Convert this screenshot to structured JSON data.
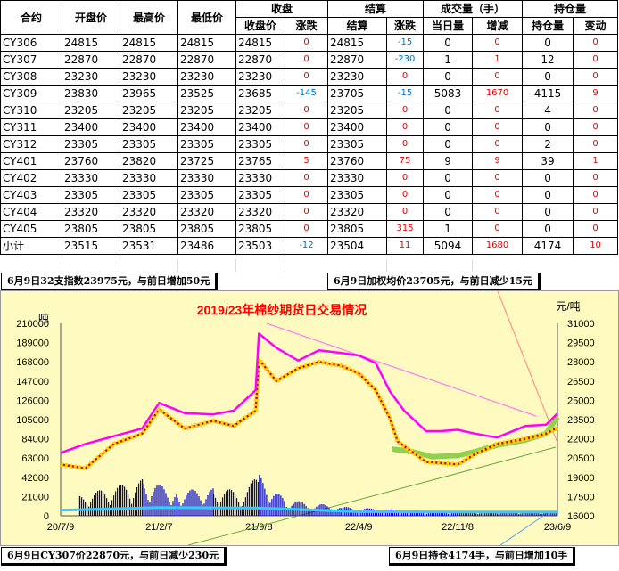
{
  "table": {
    "headers_top": [
      "合约",
      "开盘价",
      "最高价",
      "最低价",
      "收盘",
      "结算",
      "成交量（手）",
      "持仓量"
    ],
    "headers_sub": [
      "收盘价",
      "涨跌",
      "结算",
      "涨跌",
      "当日量",
      "增减",
      "持仓量",
      "变动"
    ],
    "rows": [
      [
        "CY306",
        "24815",
        "24815",
        "24815",
        "24815",
        "0",
        "24815",
        "-15",
        "0",
        "0",
        "0",
        "0"
      ],
      [
        "CY307",
        "22870",
        "22870",
        "22870",
        "22870",
        "0",
        "22870",
        "-230",
        "1",
        "1",
        "12",
        "0"
      ],
      [
        "CY308",
        "23230",
        "23230",
        "23230",
        "23230",
        "0",
        "23230",
        "0",
        "0",
        "0",
        "0",
        "0"
      ],
      [
        "CY309",
        "23830",
        "23965",
        "23525",
        "23685",
        "-145",
        "23705",
        "-15",
        "5083",
        "1670",
        "4115",
        "9"
      ],
      [
        "CY310",
        "23205",
        "23205",
        "23205",
        "23205",
        "0",
        "23205",
        "0",
        "0",
        "0",
        "4",
        "0"
      ],
      [
        "CY311",
        "23400",
        "23400",
        "23400",
        "23400",
        "0",
        "23400",
        "0",
        "0",
        "0",
        "0",
        "0"
      ],
      [
        "CY312",
        "23305",
        "23305",
        "23305",
        "23305",
        "0",
        "23305",
        "0",
        "0",
        "0",
        "2",
        "0"
      ],
      [
        "CY401",
        "23760",
        "23820",
        "23725",
        "23765",
        "5",
        "23760",
        "75",
        "9",
        "9",
        "39",
        "1"
      ],
      [
        "CY402",
        "23330",
        "23330",
        "23330",
        "23330",
        "0",
        "23330",
        "0",
        "0",
        "0",
        "0",
        "0"
      ],
      [
        "CY403",
        "23305",
        "23305",
        "23305",
        "23305",
        "0",
        "23305",
        "0",
        "0",
        "0",
        "0",
        "0"
      ],
      [
        "CY404",
        "23320",
        "23320",
        "23320",
        "23320",
        "0",
        "23320",
        "0",
        "0",
        "0",
        "0",
        "0"
      ],
      [
        "CY405",
        "23805",
        "23805",
        "23805",
        "23805",
        "0",
        "23805",
        "315",
        "1",
        "0",
        "0",
        "0"
      ],
      [
        "小计",
        "23515",
        "23531",
        "23486",
        "23503",
        "-12",
        "23504",
        "11",
        "5094",
        "1680",
        "4174",
        "10"
      ]
    ]
  },
  "notes": {
    "index": "6月9日32支指数23975元，与前日增加50元",
    "weighted": "6月9日加权均价23705元，与前日减少15元",
    "cy307": "6月9日CY307价22870元，与前日减少230元",
    "oi": "6月9日持仓4174手，与前日增加10手"
  },
  "colors": {
    "up": "#e60000",
    "down": "#0070c0",
    "plot_bg": "#fffbc0",
    "magenta": "#ff00ff",
    "gold": "#ffd200",
    "green": "#92d050",
    "blue": "#0000cc",
    "cyan": "#33ccff",
    "title": "#ff0000"
  },
  "chart_data": {
    "type": "line",
    "title": "2019/23年棉纱期货日交易情况",
    "y_left_label": "吨",
    "y_right_label": "元/吨",
    "x_ticks": [
      "20/7/9",
      "21/2/7",
      "21/9/8",
      "22/4/9",
      "22/11/8",
      "23/6/9"
    ],
    "y_left_ticks": [
      "0",
      "21000",
      "42000",
      "63000",
      "84000",
      "105000",
      "126000",
      "147000",
      "168000",
      "189000",
      "210000"
    ],
    "y_right_ticks": [
      "16000",
      "17500",
      "19000",
      "20500",
      "22000",
      "23500",
      "25000",
      "26500",
      "28000",
      "29500",
      "31000"
    ],
    "y_left_range": [
      0,
      210000
    ],
    "y_right_range": [
      16000,
      31000
    ],
    "series": [
      {
        "name": "magenta-index",
        "axis": "right",
        "x": [
          "20/7/9",
          "20/9/1",
          "20/11/1",
          "21/1/1",
          "21/2/7",
          "21/4/1",
          "21/6/1",
          "21/7/15",
          "21/9/1",
          "21/9/8",
          "21/10/15",
          "21/12/1",
          "22/1/15",
          "22/3/1",
          "22/4/9",
          "22/5/15",
          "22/6/15",
          "22/7/15",
          "22/9/1",
          "22/10/1",
          "22/11/8",
          "22/12/15",
          "23/2/1",
          "23/4/1",
          "23/5/15",
          "23/6/9"
        ],
        "y": [
          20900,
          21600,
          22200,
          22800,
          24800,
          24000,
          23900,
          24200,
          25800,
          30200,
          29100,
          28100,
          28900,
          28700,
          28500,
          27900,
          25700,
          24200,
          22600,
          22600,
          22700,
          22400,
          22100,
          23000,
          23100,
          23975
        ]
      },
      {
        "name": "gold-price",
        "axis": "right",
        "x": [
          "20/7/9",
          "20/9/1",
          "20/11/1",
          "21/1/1",
          "21/2/7",
          "21/4/1",
          "21/6/1",
          "21/7/15",
          "21/9/1",
          "21/9/8",
          "21/10/15",
          "21/12/1",
          "22/1/15",
          "22/3/1",
          "22/4/9",
          "22/5/15",
          "22/6/15",
          "22/7/1",
          "22/9/1",
          "22/11/8",
          "22/12/15",
          "23/2/1",
          "23/4/1",
          "23/5/15",
          "23/6/9"
        ],
        "y": [
          20000,
          19700,
          21600,
          22400,
          24300,
          22800,
          23400,
          23000,
          24200,
          28200,
          26500,
          27500,
          28000,
          27700,
          27100,
          25800,
          23600,
          21800,
          20200,
          20000,
          20800,
          21600,
          22000,
          22400,
          22870
        ]
      },
      {
        "name": "green-weighted",
        "axis": "right",
        "x": [
          "22/6/20",
          "22/8/1",
          "22/9/15",
          "22/11/8",
          "22/12/15",
          "23/2/1",
          "23/4/1",
          "23/5/15",
          "23/6/9"
        ],
        "y": [
          21200,
          21000,
          20600,
          20700,
          21000,
          21500,
          21900,
          22400,
          23705
        ]
      },
      {
        "name": "cyan-oi",
        "axis": "left",
        "x": [
          "20/7/9",
          "21/2/7",
          "21/9/8",
          "22/4/9",
          "22/11/8",
          "23/6/9"
        ],
        "y": [
          6000,
          9000,
          8500,
          4500,
          4200,
          4174
        ]
      },
      {
        "name": "blue-volume",
        "axis": "left",
        "x": [
          "20/8/15",
          "21/1/1",
          "21/3/15",
          "21/6/1",
          "21/8/1",
          "21/9/8",
          "21/11/1",
          "22/1/1",
          "22/3/1",
          "22/5/1",
          "22/8/1",
          "22/11/8",
          "23/2/1",
          "23/6/9"
        ],
        "y": [
          22000,
          40000,
          28000,
          30000,
          28000,
          45000,
          18000,
          14000,
          10000,
          8000,
          6000,
          5000,
          5000,
          5094
        ]
      }
    ],
    "trendlines": [
      "pink-resistance",
      "green-support",
      "salmon-pointer",
      "blue-pointer"
    ]
  }
}
